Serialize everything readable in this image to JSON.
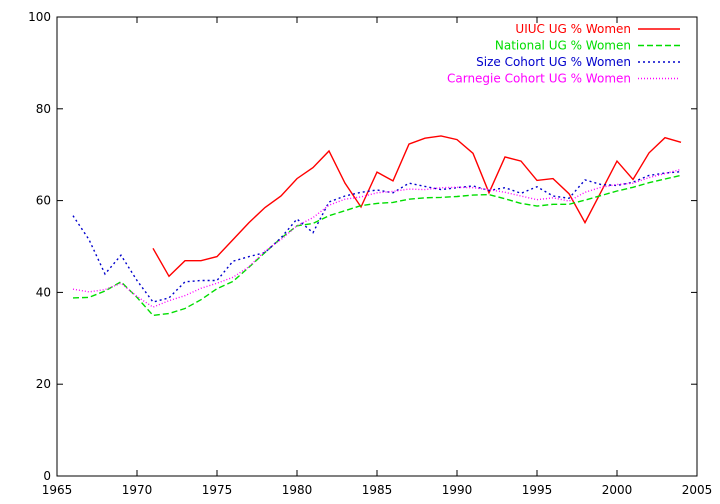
{
  "chart_data": {
    "type": "line",
    "xlim": [
      1965,
      2005
    ],
    "ylim": [
      0,
      100
    ],
    "xticks": [
      1965,
      1970,
      1975,
      1980,
      1985,
      1990,
      1995,
      2000,
      2005
    ],
    "yticks": [
      0,
      20,
      40,
      60,
      80,
      100
    ],
    "grid": false,
    "legend_position": "top-right",
    "series": [
      {
        "name": "UIUC UG % Women",
        "color": "#ff0000",
        "dash": "solid",
        "x": [
          1971,
          1972,
          1973,
          1974,
          1975,
          1976,
          1977,
          1978,
          1979,
          1980,
          1981,
          1982,
          1983,
          1984,
          1985,
          1986,
          1987,
          1988,
          1989,
          1990,
          1991,
          1992,
          1993,
          1994,
          1995,
          1996,
          1997,
          1998,
          1999,
          2000,
          2001,
          2002,
          2003,
          2004
        ],
        "y": [
          49.6,
          43.5,
          46.9,
          46.9,
          47.8,
          51.5,
          55.2,
          58.5,
          61.0,
          64.8,
          67.2,
          70.8,
          63.8,
          58.6,
          66.2,
          64.3,
          72.3,
          73.6,
          74.1,
          73.3,
          70.3,
          61.7,
          69.5,
          68.6,
          64.4,
          64.8,
          61.5,
          55.2,
          61.9,
          68.6,
          64.6,
          70.4,
          73.7,
          72.7
        ]
      },
      {
        "name": "National UG % Women",
        "color": "#00dd00",
        "dash": "dashed",
        "x": [
          1966,
          1967,
          1968,
          1969,
          1970,
          1971,
          1972,
          1973,
          1974,
          1975,
          1976,
          1977,
          1978,
          1979,
          1980,
          1981,
          1982,
          1983,
          1984,
          1985,
          1986,
          1987,
          1988,
          1989,
          1990,
          1991,
          1992,
          1993,
          1994,
          1995,
          1996,
          1997,
          1998,
          1999,
          2000,
          2001,
          2002,
          2003,
          2004
        ],
        "y": [
          38.8,
          38.9,
          40.3,
          42.3,
          38.9,
          35.0,
          35.4,
          36.5,
          38.4,
          40.8,
          42.4,
          45.5,
          48.7,
          51.8,
          54.5,
          55.0,
          56.7,
          57.8,
          58.9,
          59.4,
          59.6,
          60.3,
          60.6,
          60.7,
          60.9,
          61.2,
          61.3,
          60.4,
          59.4,
          58.8,
          59.2,
          59.2,
          60.1,
          61.1,
          62.1,
          62.9,
          63.9,
          64.7,
          65.5
        ]
      },
      {
        "name": "Size Cohort UG % Women",
        "color": "#0000cc",
        "dash": "dotted",
        "x": [
          1966,
          1967,
          1968,
          1969,
          1970,
          1971,
          1972,
          1973,
          1974,
          1975,
          1976,
          1977,
          1978,
          1979,
          1980,
          1981,
          1982,
          1983,
          1984,
          1985,
          1986,
          1987,
          1988,
          1989,
          1990,
          1991,
          1992,
          1993,
          1994,
          1995,
          1996,
          1997,
          1998,
          1999,
          2000,
          2001,
          2002,
          2003,
          2004
        ],
        "y": [
          56.7,
          51.5,
          44.0,
          48.1,
          42.6,
          37.9,
          38.8,
          42.3,
          42.6,
          42.6,
          46.8,
          47.8,
          48.7,
          51.9,
          56.0,
          53.0,
          59.7,
          61.0,
          61.8,
          62.3,
          61.7,
          63.8,
          63.1,
          62.4,
          62.8,
          63.2,
          62.2,
          62.8,
          61.6,
          63.0,
          61.0,
          60.5,
          64.5,
          63.5,
          63.3,
          64.0,
          65.5,
          66.0,
          66.3
        ]
      },
      {
        "name": "Carnegie Cohort UG % Women",
        "color": "#ff00ff",
        "dash": "fine-dotted",
        "x": [
          1966,
          1967,
          1968,
          1969,
          1970,
          1971,
          1972,
          1973,
          1974,
          1975,
          1976,
          1977,
          1978,
          1979,
          1980,
          1981,
          1982,
          1983,
          1984,
          1985,
          1986,
          1987,
          1988,
          1989,
          1990,
          1991,
          1992,
          1993,
          1994,
          1995,
          1996,
          1997,
          1998,
          1999,
          2000,
          2001,
          2002,
          2003,
          2004
        ],
        "y": [
          40.7,
          40.1,
          40.6,
          42.0,
          39.1,
          36.8,
          38.2,
          39.3,
          40.9,
          42.0,
          43.3,
          45.6,
          49.0,
          51.5,
          54.5,
          56.3,
          59.0,
          60.3,
          60.8,
          61.7,
          62.0,
          62.5,
          62.4,
          62.8,
          62.9,
          62.8,
          62.4,
          61.8,
          61.0,
          60.2,
          60.6,
          59.9,
          61.8,
          62.9,
          63.5,
          63.8,
          65.0,
          65.9,
          66.8
        ]
      }
    ]
  }
}
